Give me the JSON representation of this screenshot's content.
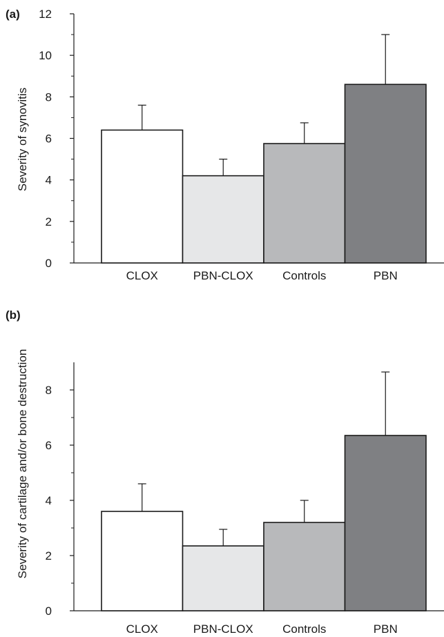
{
  "chart_data": [
    {
      "type": "bar",
      "panel": "(a)",
      "title": "",
      "xlabel": "",
      "ylabel": "Severity of synovitis",
      "categories": [
        "CLOX",
        "PBN-CLOX",
        "Controls",
        "PBN"
      ],
      "values": [
        6.4,
        4.2,
        5.75,
        8.6
      ],
      "error": [
        1.2,
        0.8,
        1.0,
        2.4
      ],
      "colors": [
        "#ffffff",
        "#e6e7e8",
        "#b8b9bb",
        "#7f8083"
      ],
      "ylim": [
        0,
        12
      ],
      "yticks": [
        0,
        2,
        4,
        6,
        8,
        10,
        12
      ],
      "ytick_labels": [
        "0",
        "2",
        "4",
        "6",
        "8",
        "10",
        "12"
      ],
      "grid": false
    },
    {
      "type": "bar",
      "panel": "(b)",
      "title": "",
      "xlabel": "",
      "ylabel": "Severity of cartilage and/or bone destruction",
      "categories": [
        "CLOX",
        "PBN-CLOX",
        "Controls",
        "PBN"
      ],
      "values": [
        3.6,
        2.35,
        3.2,
        6.35
      ],
      "error": [
        1.0,
        0.6,
        0.8,
        2.3
      ],
      "colors": [
        "#ffffff",
        "#e6e7e8",
        "#b8b9bb",
        "#7f8083"
      ],
      "ylim": [
        0,
        9
      ],
      "yticks": [
        0,
        2,
        4,
        6,
        8
      ],
      "ytick_labels": [
        "0",
        "2",
        "4",
        "6",
        "8"
      ],
      "grid": false
    }
  ]
}
